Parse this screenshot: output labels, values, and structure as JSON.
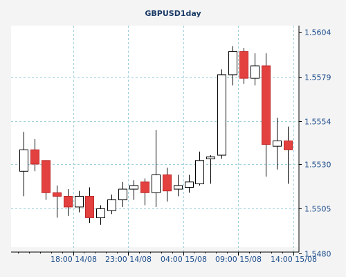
{
  "chart_data": {
    "type": "candlestick",
    "title": "GBPUSD1day",
    "y_ticks": [
      "1.5604",
      "1.5579",
      "1.5554",
      "1.5530",
      "1.5505",
      "1.5480"
    ],
    "y_tick_values": [
      1.5604,
      1.5579,
      1.5554,
      1.553,
      1.5505,
      1.548
    ],
    "ylim": [
      1.548,
      1.5604
    ],
    "x_ticks": [
      "18:00 14/08",
      "23:00 14/08",
      "04:00 15/08",
      "09:00 15/08",
      "14:00 15/08"
    ],
    "grid": true,
    "series": [
      {
        "open": 1.5526,
        "high": 1.5548,
        "low": 1.5512,
        "close": 1.5538
      },
      {
        "open": 1.5538,
        "high": 1.5544,
        "low": 1.5526,
        "close": 1.553
      },
      {
        "open": 1.5532,
        "high": 1.5532,
        "low": 1.551,
        "close": 1.5514
      },
      {
        "open": 1.5514,
        "high": 1.5518,
        "low": 1.55,
        "close": 1.5512
      },
      {
        "open": 1.5512,
        "high": 1.5516,
        "low": 1.5501,
        "close": 1.5506
      },
      {
        "open": 1.5506,
        "high": 1.5515,
        "low": 1.5503,
        "close": 1.5512
      },
      {
        "open": 1.5512,
        "high": 1.5517,
        "low": 1.5497,
        "close": 1.55
      },
      {
        "open": 1.55,
        "high": 1.5507,
        "low": 1.5496,
        "close": 1.5505
      },
      {
        "open": 1.5504,
        "high": 1.5513,
        "low": 1.5502,
        "close": 1.551
      },
      {
        "open": 1.551,
        "high": 1.552,
        "low": 1.5506,
        "close": 1.5516
      },
      {
        "open": 1.5516,
        "high": 1.5521,
        "low": 1.551,
        "close": 1.5518
      },
      {
        "open": 1.552,
        "high": 1.5522,
        "low": 1.5507,
        "close": 1.5514
      },
      {
        "open": 1.5514,
        "high": 1.5549,
        "low": 1.5506,
        "close": 1.5524
      },
      {
        "open": 1.5524,
        "high": 1.5528,
        "low": 1.5509,
        "close": 1.5515
      },
      {
        "open": 1.5516,
        "high": 1.5524,
        "low": 1.5512,
        "close": 1.5518
      },
      {
        "open": 1.5517,
        "high": 1.5524,
        "low": 1.5514,
        "close": 1.552
      },
      {
        "open": 1.5519,
        "high": 1.5537,
        "low": 1.5518,
        "close": 1.5532
      },
      {
        "open": 1.5533,
        "high": 1.5535,
        "low": 1.5519,
        "close": 1.5534
      },
      {
        "open": 1.5535,
        "high": 1.5583,
        "low": 1.5533,
        "close": 1.558
      },
      {
        "open": 1.558,
        "high": 1.5596,
        "low": 1.5574,
        "close": 1.5593
      },
      {
        "open": 1.5593,
        "high": 1.5595,
        "low": 1.5575,
        "close": 1.5578
      },
      {
        "open": 1.5578,
        "high": 1.5592,
        "low": 1.5574,
        "close": 1.5585
      },
      {
        "open": 1.5585,
        "high": 1.5592,
        "low": 1.5523,
        "close": 1.5541
      },
      {
        "open": 1.554,
        "high": 1.5556,
        "low": 1.5527,
        "close": 1.5543
      },
      {
        "open": 1.5543,
        "high": 1.5551,
        "low": 1.5519,
        "close": 1.5538
      }
    ]
  }
}
